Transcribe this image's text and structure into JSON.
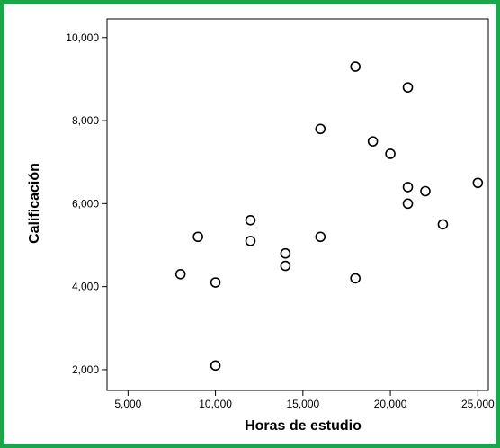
{
  "chart_data": {
    "type": "scatter",
    "title": "",
    "xlabel": "Horas de estudio",
    "ylabel": "Calificación",
    "xlim": [
      3800,
      25600
    ],
    "ylim": [
      1500,
      10450
    ],
    "x_ticks": [
      5000,
      10000,
      15000,
      20000,
      25000
    ],
    "x_tick_labels": [
      "5,000",
      "10,000",
      "15,000",
      "20,000",
      "25,000"
    ],
    "y_ticks": [
      2000,
      4000,
      6000,
      8000,
      10000
    ],
    "y_tick_labels": [
      "2,000",
      "4,000",
      "6,000",
      "8,000",
      "10,000"
    ],
    "grid": false,
    "marker_color": "#000000",
    "frame_color": "#1aa64a",
    "points": [
      {
        "x": 8000,
        "y": 4300
      },
      {
        "x": 9000,
        "y": 5200
      },
      {
        "x": 10000,
        "y": 4100
      },
      {
        "x": 10000,
        "y": 2100
      },
      {
        "x": 12000,
        "y": 5600
      },
      {
        "x": 12000,
        "y": 5100
      },
      {
        "x": 14000,
        "y": 4800
      },
      {
        "x": 14000,
        "y": 4500
      },
      {
        "x": 16000,
        "y": 7800
      },
      {
        "x": 16000,
        "y": 5200
      },
      {
        "x": 18000,
        "y": 9300
      },
      {
        "x": 18000,
        "y": 4200
      },
      {
        "x": 19000,
        "y": 7500
      },
      {
        "x": 20000,
        "y": 7200
      },
      {
        "x": 21000,
        "y": 8800
      },
      {
        "x": 21000,
        "y": 6400
      },
      {
        "x": 21000,
        "y": 6000
      },
      {
        "x": 22000,
        "y": 6300
      },
      {
        "x": 23000,
        "y": 5500
      },
      {
        "x": 25000,
        "y": 6500
      }
    ]
  }
}
